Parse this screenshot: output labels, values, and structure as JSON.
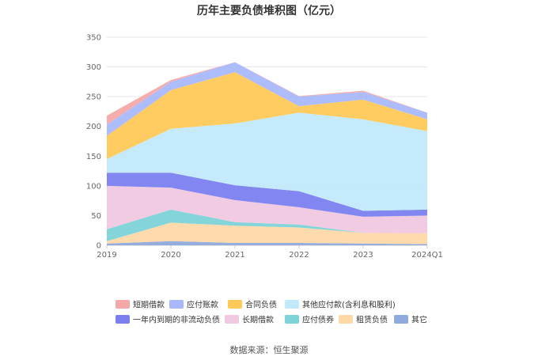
{
  "chart_data": {
    "type": "area",
    "stacked": true,
    "title": "历年主要负债堆积图（亿元）",
    "categories": [
      "2019",
      "2020",
      "2021",
      "2022",
      "2023",
      "2024Q1"
    ],
    "ylim": [
      0,
      350
    ],
    "yticks": [
      0,
      50,
      100,
      150,
      200,
      250,
      300,
      350
    ],
    "grid": true,
    "legend_position": "bottom",
    "series": [
      {
        "name": "其它",
        "color": "#8faadc",
        "values": [
          3,
          7,
          4,
          4,
          3,
          2
        ]
      },
      {
        "name": "租赁负债",
        "color": "#ffd8a8",
        "values": [
          4,
          31,
          29,
          26,
          18,
          18
        ]
      },
      {
        "name": "应付债券",
        "color": "#7dd3d8",
        "values": [
          20,
          22,
          6,
          5,
          0,
          0
        ]
      },
      {
        "name": "长期借款",
        "color": "#f0c8e0",
        "values": [
          73,
          37,
          37,
          29,
          27,
          30
        ]
      },
      {
        "name": "一年内到期的非流动负债",
        "color": "#7b7ff0",
        "values": [
          22,
          25,
          25,
          27,
          10,
          10
        ]
      },
      {
        "name": "其他应付款(含利息和股利)",
        "color": "#c2e9fb",
        "values": [
          23,
          74,
          104,
          132,
          154,
          132
        ]
      },
      {
        "name": "合同负债",
        "color": "#ffc95a",
        "values": [
          39,
          65,
          86,
          11,
          33,
          20
        ]
      },
      {
        "name": "应付账款",
        "color": "#a9b8fb",
        "values": [
          19,
          14,
          17,
          16,
          13,
          11
        ]
      },
      {
        "name": "短期借款",
        "color": "#f4a9a8",
        "values": [
          15,
          3,
          0,
          1,
          2,
          0
        ]
      }
    ],
    "legend_order": [
      "短期借款",
      "应付账款",
      "合同负债",
      "其他应付款(含利息和股利)",
      "一年内到期的非流动负债",
      "长期借款",
      "应付债券",
      "租赁负债",
      "其它"
    ]
  },
  "source_label": "数据来源：恒生聚源"
}
